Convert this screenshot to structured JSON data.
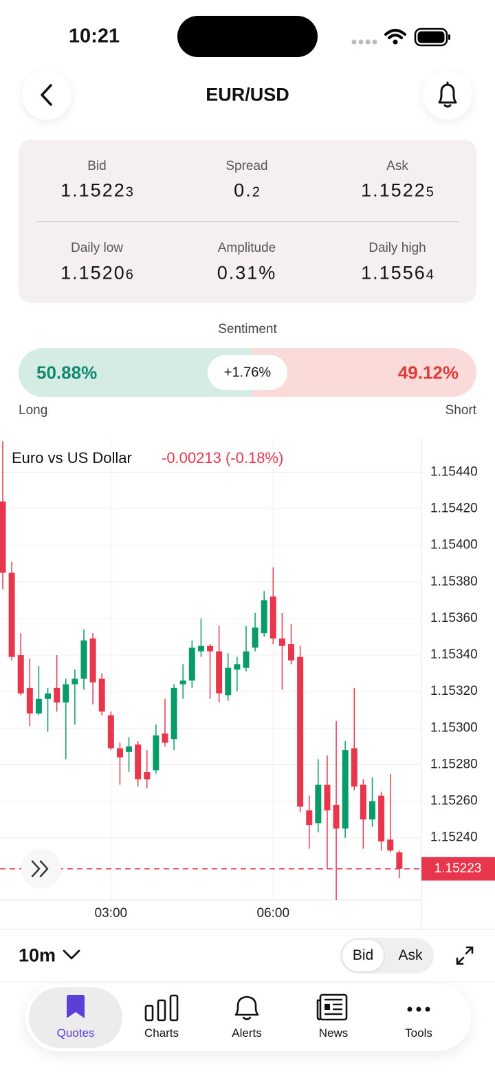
{
  "status_bar": {
    "time": "10:21"
  },
  "header": {
    "title": "EUR/USD"
  },
  "quotes": {
    "rows": [
      [
        {
          "label": "Bid",
          "value": "1.15223"
        },
        {
          "label": "Spread",
          "value": "0.2"
        },
        {
          "label": "Ask",
          "value": "1.15225"
        }
      ],
      [
        {
          "label": "Daily low",
          "value": "1.15206"
        },
        {
          "label": "Amplitude",
          "value": "0.31%"
        },
        {
          "label": "Daily high",
          "value": "1.15564"
        }
      ]
    ]
  },
  "sentiment": {
    "title": "Sentiment",
    "long": {
      "value": 50.88,
      "label": "50.88%"
    },
    "short": {
      "value": 49.12,
      "label": "49.12%"
    },
    "difference": "+1.76%",
    "long_label": "Long",
    "short_label": "Short"
  },
  "chart_data": {
    "type": "candlestick",
    "title": "Euro vs US Dollar",
    "change_label": "-0.00213 (-0.18%)",
    "categories": [
      null,
      null,
      null,
      null,
      null,
      null,
      null,
      null,
      null,
      null,
      null,
      null,
      "03:00",
      null,
      null,
      null,
      null,
      null,
      null,
      null,
      null,
      null,
      null,
      null,
      null,
      null,
      null,
      null,
      null,
      null,
      "06:00",
      null,
      null,
      null,
      null,
      null,
      null,
      null,
      null,
      null,
      null,
      null,
      null,
      null,
      null
    ],
    "open": [
      1.15424,
      1.15385,
      1.1534,
      1.15322,
      1.15308,
      1.15316,
      1.15322,
      1.15314,
      1.15324,
      1.15327,
      1.15349,
      1.15327,
      1.15307,
      1.15289,
      1.15287,
      1.15291,
      1.15276,
      1.15277,
      1.15297,
      1.15294,
      1.15324,
      1.15326,
      1.15342,
      1.15345,
      1.15342,
      1.15318,
      1.15332,
      1.15333,
      1.15344,
      1.15352,
      1.15372,
      1.15349,
      1.15346,
      1.15339,
      1.15255,
      1.15248,
      1.15269,
      1.15258,
      1.15245,
      1.15289,
      1.15269,
      1.1525,
      1.15263,
      1.15239,
      1.15232
    ],
    "high": [
      1.15457,
      1.15391,
      1.15352,
      1.15338,
      1.15334,
      1.15322,
      1.1534,
      1.15327,
      1.15332,
      1.15354,
      1.15352,
      1.1533,
      1.15309,
      1.15292,
      1.15295,
      1.15293,
      1.15288,
      1.15302,
      1.15316,
      1.15324,
      1.15335,
      1.15348,
      1.1536,
      1.15346,
      1.15356,
      1.15341,
      1.15339,
      1.15356,
      1.15363,
      1.15375,
      1.15388,
      1.15363,
      1.15357,
      1.15345,
      1.15263,
      1.15283,
      1.15285,
      1.15304,
      1.15293,
      1.15322,
      1.15272,
      1.15273,
      1.15265,
      1.15275,
      1.15233
    ],
    "low": [
      1.15376,
      1.15337,
      1.15318,
      1.15301,
      1.15307,
      1.15298,
      1.15309,
      1.15283,
      1.15302,
      1.15321,
      1.15313,
      1.15307,
      1.15288,
      1.15269,
      1.15276,
      1.15268,
      1.15267,
      1.15275,
      1.1529,
      1.15288,
      1.15316,
      1.15322,
      1.15339,
      1.15316,
      1.15314,
      1.15315,
      1.1532,
      1.15331,
      1.15342,
      1.1535,
      1.15346,
      1.15321,
      1.15335,
      1.15254,
      1.15234,
      1.15243,
      1.15223,
      1.15206,
      1.1524,
      1.15266,
      1.15234,
      1.15246,
      1.15233,
      1.15232,
      1.15218
    ],
    "close": [
      1.15385,
      1.15339,
      1.15319,
      1.15308,
      1.15316,
      1.15319,
      1.15314,
      1.15324,
      1.15327,
      1.15348,
      1.15325,
      1.15309,
      1.15289,
      1.15284,
      1.1529,
      1.15272,
      1.15272,
      1.15296,
      1.15292,
      1.15322,
      1.15326,
      1.15344,
      1.15345,
      1.15342,
      1.15319,
      1.15333,
      1.15335,
      1.15342,
      1.15355,
      1.1537,
      1.15349,
      1.15345,
      1.15337,
      1.15257,
      1.15247,
      1.15269,
      1.15255,
      1.15245,
      1.15288,
      1.15268,
      1.1525,
      1.1526,
      1.15238,
      1.15233,
      1.15223
    ],
    "up_color": "#0a9b6b",
    "down_color": "#e8374d",
    "last_price": 1.15223,
    "ylim": [
      1.15206,
      1.15459
    ],
    "yticks": [
      {
        "value": 1.1524,
        "label": "1.15240"
      },
      {
        "value": 1.1526,
        "label": "1.15260"
      },
      {
        "value": 1.1528,
        "label": "1.15280"
      },
      {
        "value": 1.153,
        "label": "1.15300"
      },
      {
        "value": 1.1532,
        "label": "1.15320"
      },
      {
        "value": 1.1534,
        "label": "1.15340"
      },
      {
        "value": 1.1536,
        "label": "1.15360"
      },
      {
        "value": 1.1538,
        "label": "1.15380"
      },
      {
        "value": 1.154,
        "label": "1.15400"
      },
      {
        "value": 1.1542,
        "label": "1.15420"
      },
      {
        "value": 1.1544,
        "label": "1.15440"
      }
    ],
    "grid": true
  },
  "controls": {
    "timeframe": "10m",
    "price_toggle": [
      "Bid",
      "Ask"
    ],
    "selected_price": 0
  },
  "tabs": {
    "items": [
      "Quotes",
      "Charts",
      "Alerts",
      "News",
      "Tools"
    ],
    "active": 0
  }
}
